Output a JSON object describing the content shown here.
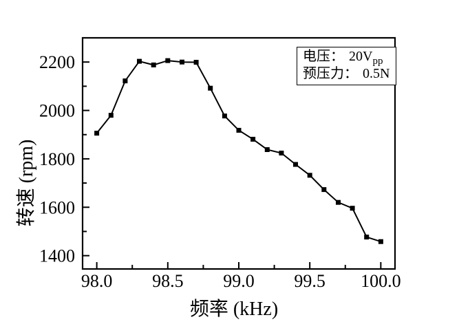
{
  "figure": {
    "background": "#ffffff",
    "ink_color": "#000000"
  },
  "chart_data": {
    "type": "line",
    "title": "",
    "xlabel": "频率 (kHz)",
    "ylabel": "转速 (rpm)",
    "x": [
      98.0,
      98.1,
      98.2,
      98.3,
      98.4,
      98.5,
      98.6,
      98.7,
      98.8,
      98.9,
      99.0,
      99.1,
      99.2,
      99.3,
      99.4,
      99.5,
      99.6,
      99.7,
      99.8,
      99.9,
      100.0
    ],
    "series": [
      {
        "name": "转速",
        "values": [
          1906,
          1980,
          2122,
          2203,
          2188,
          2206,
          2200,
          2199,
          2092,
          1977,
          1918,
          1881,
          1838,
          1824,
          1777,
          1732,
          1673,
          1620,
          1596,
          1477,
          1458
        ]
      }
    ],
    "xlim": [
      97.9,
      100.1
    ],
    "ylim": [
      1345,
      2300
    ],
    "xticks": {
      "major": [
        98.0,
        98.5,
        99.0,
        99.5,
        100.0
      ],
      "labels": [
        "98.0",
        "98.5",
        "99.0",
        "99.5",
        "100.0"
      ],
      "minor": [
        98.25,
        98.75,
        99.25,
        99.75
      ]
    },
    "yticks": {
      "major": [
        1400,
        1600,
        1800,
        2000,
        2200
      ],
      "labels": [
        "1400",
        "1600",
        "1800",
        "2000",
        "2200"
      ],
      "minor": [
        1500,
        1700,
        1900,
        2100
      ]
    },
    "grid": false,
    "marker": "square",
    "line_color": "#000000",
    "legend_position": "top-right-inside",
    "annotation_box": {
      "lines": [
        {
          "label": "电压：",
          "value": "20V",
          "subscript": "pp"
        },
        {
          "label": "预压力：",
          "value": "0.5N",
          "subscript": ""
        }
      ]
    }
  }
}
